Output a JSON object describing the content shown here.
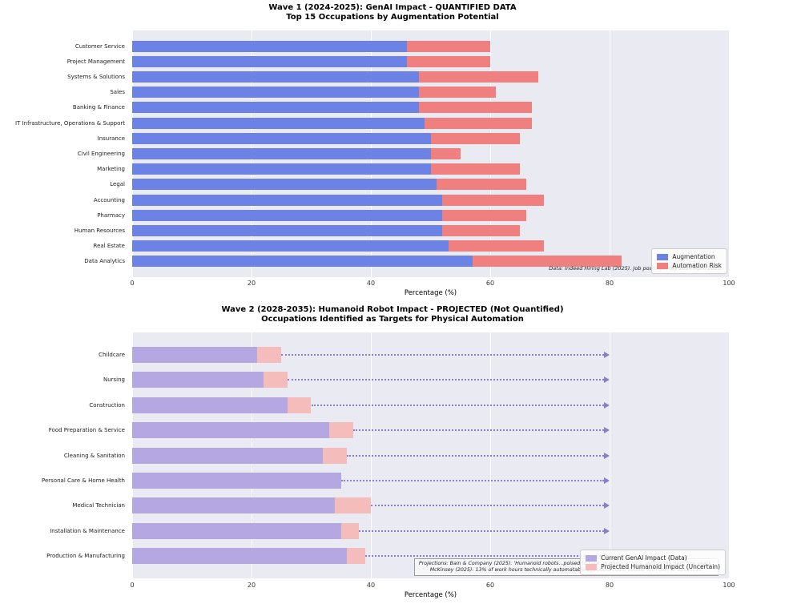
{
  "colors": {
    "augmentation": "#6c82e4",
    "automation": "#f08080",
    "genai_current": "#b5a7e1",
    "projected_tip": "#f5bcbc",
    "arrow": "#8d7cc9",
    "plot_bg": "#eaeaf2",
    "grid": "#ffffff"
  },
  "chart_data": [
    {
      "type": "bar",
      "orientation": "horizontal",
      "stacked": true,
      "grid": true,
      "title": "Wave 1 (2024-2025): GenAI Impact - QUANTIFIED DATA",
      "subtitle": "Top 15 Occupations by Augmentation Potential",
      "xlabel": "Percentage (%)",
      "xlim": [
        0,
        100
      ],
      "xticks": [
        "0",
        "20",
        "40",
        "60",
        "80",
        "100"
      ],
      "legend_position": "lower right",
      "categories": [
        "Customer Service",
        "Project Management",
        "Systems & Solutions",
        "Sales",
        "Banking & Finance",
        "IT Infrastructure, Operations & Support",
        "Insurance",
        "Civil Engineering",
        "Marketing",
        "Legal",
        "Accounting",
        "Pharmacy",
        "Human Resources",
        "Real Estate",
        "Data Analytics"
      ],
      "series": [
        {
          "name": "Augmentation",
          "color": "augmentation",
          "values": [
            46,
            46,
            48,
            48,
            48,
            49,
            50,
            50,
            50,
            51,
            52,
            52,
            52,
            53,
            57
          ]
        },
        {
          "name": "Automation Risk",
          "color": "automation",
          "values": [
            14,
            14,
            20,
            13,
            19,
            18,
            15,
            5,
            15,
            15,
            17,
            14,
            13,
            16,
            25
          ]
        }
      ],
      "annotation": "Data: Indeed Hiring Lab (2025). Job postings May 2024-April 2025."
    },
    {
      "type": "bar",
      "orientation": "horizontal",
      "stacked": true,
      "grid": true,
      "title": "Wave 2 (2028-2035): Humanoid Robot Impact - PROJECTED (Not Quantified)",
      "subtitle": "Occupations Identified as Targets for Physical Automation",
      "xlabel": "Percentage (%)",
      "xlim": [
        0,
        100
      ],
      "xticks": [
        "0",
        "20",
        "40",
        "60",
        "80",
        "100"
      ],
      "legend_position": "lower right",
      "arrow_to": 80,
      "categories": [
        "Childcare",
        "Nursing",
        "Construction",
        "Food Preparation & Service",
        "Cleaning & Sanitation",
        "Personal Care & Home Health",
        "Medical Technician",
        "Installation & Maintenance",
        "Production & Manufacturing"
      ],
      "series": [
        {
          "name": "Current GenAI Impact (Data)",
          "color": "genai_current",
          "values": [
            21,
            22,
            26,
            33,
            32,
            35,
            34,
            35,
            36
          ]
        },
        {
          "name": "Projected Humanoid Impact (Uncertain)",
          "color": "projected_tip",
          "values": [
            4,
            4,
            4,
            4,
            4,
            0,
            6,
            3,
            3
          ]
        }
      ],
      "annotation_line1": "Projections: Bain & Company (2025). 'Humanoid robots...poised to take on physical jobs...within the next five years.'",
      "annotation_line2": "McKinsey (2025): 13% of work hours technically automatable by robots could double with Gen AI advances."
    }
  ]
}
